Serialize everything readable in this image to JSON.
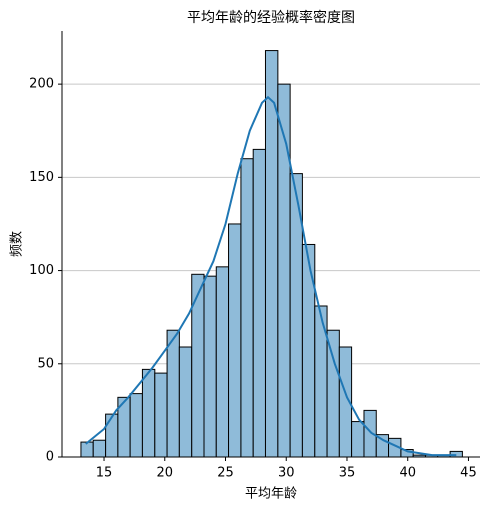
{
  "chart_data": {
    "type": "histogram",
    "title": "平均年龄的经验概率密度图",
    "x_label": "平均年龄",
    "y_label": "频数",
    "bins": [
      13.1,
      14.11,
      15.13,
      16.14,
      17.15,
      18.16,
      19.18,
      20.19,
      21.2,
      22.22,
      23.23,
      24.24,
      25.25,
      26.27,
      27.28,
      28.29,
      29.31,
      30.32,
      31.33,
      32.35,
      33.36,
      34.37,
      35.38,
      36.4,
      37.41,
      38.42,
      39.44,
      40.45,
      41.46,
      42.47,
      43.49,
      44.5
    ],
    "values": [
      8,
      9,
      23,
      32,
      34,
      47,
      45,
      68,
      59,
      98,
      97,
      102,
      125,
      160,
      165,
      218,
      200,
      152,
      114,
      81,
      68,
      59,
      19,
      25,
      12,
      10,
      4,
      1,
      1,
      1,
      3
    ],
    "color": "#8fbbd9",
    "kde": {
      "color": "#1f77b4",
      "x": [
        13.5,
        15,
        16,
        17,
        18,
        19,
        20,
        21,
        22,
        23,
        24,
        25,
        26,
        27,
        28,
        28.5,
        29,
        30,
        31,
        32,
        33,
        34,
        35,
        36,
        37,
        38,
        39,
        40,
        41,
        42,
        43,
        44
      ],
      "values": [
        7,
        15,
        25,
        32,
        40,
        48,
        57,
        66,
        77,
        91,
        105,
        125,
        152,
        175,
        190,
        193,
        190,
        168,
        135,
        100,
        72,
        50,
        32,
        20,
        13,
        9,
        6,
        3,
        2,
        1,
        1,
        1
      ]
    },
    "xlim": [
      11.54,
      45.95
    ],
    "ylim": [
      0,
      228.5
    ],
    "xticks": [
      15,
      20,
      25,
      30,
      35,
      40,
      45
    ],
    "yticks": [
      0,
      50,
      100,
      150,
      200
    ],
    "grid": "y"
  }
}
